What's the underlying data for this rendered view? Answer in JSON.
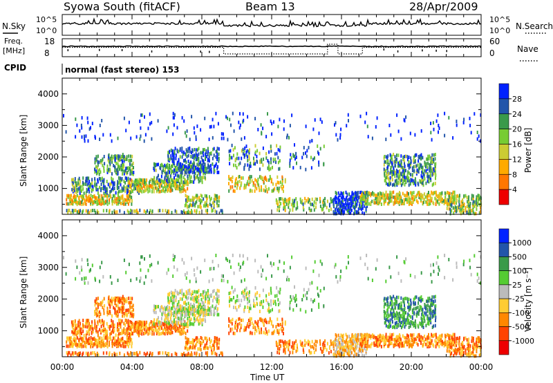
{
  "header": {
    "station": "Syowa South (fitACF)",
    "beam": "Beam 13",
    "date": "28/Apr/2009"
  },
  "noise_panel": {
    "left_label": "N.Sky",
    "right_label": "N.Search",
    "left_ticks": [
      "10^5",
      "10^0"
    ],
    "right_ticks": [
      "10^5",
      "10^0"
    ]
  },
  "freq_panel": {
    "left_label_1": "Freq.",
    "left_label_2": "[MHz]",
    "right_label": "Nave",
    "left_ticks": [
      "18",
      "8"
    ],
    "right_ticks": [
      "60",
      "0"
    ]
  },
  "cpid": {
    "label": "CPID",
    "program": "normal (fast stereo) 153"
  },
  "colors": {
    "power": [
      "#0022ff",
      "#2255aa",
      "#3a9a4a",
      "#77cc33",
      "#cccc33",
      "#ffaa00",
      "#ff7700",
      "#ee0000"
    ],
    "velocity": [
      "#0022ff",
      "#2255aa",
      "#3a9a4a",
      "#55cc33",
      "#bbbbbb",
      "#ffcc33",
      "#ff8800",
      "#ff4400",
      "#ee0000"
    ]
  },
  "chart_data": [
    {
      "type": "heatmap",
      "ylabel": "Slant Range [km]",
      "y_ticks": [
        "1000",
        "2000",
        "3000",
        "4000"
      ],
      "ylim": [
        180,
        4500
      ],
      "xlim": [
        0,
        24
      ],
      "x_ticks": [
        "00:00",
        "04:00",
        "08:00",
        "12:00",
        "16:00",
        "20:00",
        "00:00"
      ],
      "colorbar": {
        "label": "Power [dB]",
        "tick_labels": [
          "4",
          "8",
          "12",
          "16",
          "20",
          "24",
          "28"
        ],
        "range": [
          0,
          32
        ]
      }
    },
    {
      "type": "heatmap",
      "ylabel": "Slant Range [km]",
      "y_ticks": [
        "1000",
        "2000",
        "3000",
        "4000"
      ],
      "ylim": [
        180,
        4500
      ],
      "xlim": [
        0,
        24
      ],
      "x_ticks": [
        "00:00",
        "04:00",
        "08:00",
        "12:00",
        "16:00",
        "20:00",
        "00:00"
      ],
      "xlabel": "Time UT",
      "colorbar": {
        "label": "Velocity [m s⁻¹]",
        "tick_labels": [
          "1000",
          "500",
          "100",
          "25",
          "-25",
          "-100",
          "-500",
          "-1000"
        ]
      }
    }
  ]
}
